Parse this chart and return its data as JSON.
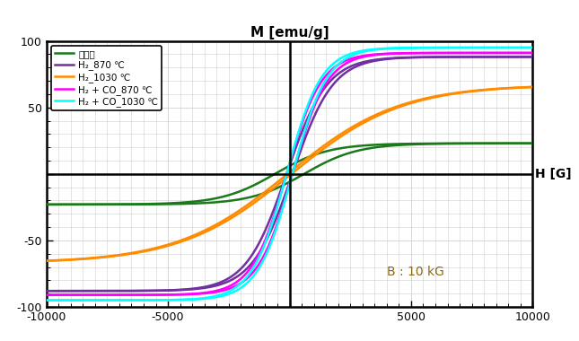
{
  "title": "M [emu/g]",
  "xlabel": "H [G]",
  "annotation": "B : 10 kG",
  "xlim": [
    -10000,
    10000
  ],
  "ylim": [
    -100,
    100
  ],
  "xticks": [
    -10000,
    -5000,
    0,
    5000,
    10000
  ],
  "yticks": [
    -100,
    -50,
    0,
    50,
    100
  ],
  "grid_color": "#d0d0d0",
  "background_color": "#ffffff",
  "curves": [
    {
      "label": "산화철",
      "color": "#1a7a1a",
      "Ms": 23,
      "Hc": 600,
      "k": 0.00045
    },
    {
      "label": "H₂_870 ℃",
      "color": "#7030a0",
      "Ms": 88,
      "Hc": 120,
      "k": 0.0006
    },
    {
      "label": "H₂_1030 ℃",
      "color": "#ff8c00",
      "Ms": 67,
      "Hc": 80,
      "k": 0.00022
    },
    {
      "label": "H₂ + CO_870 ℃",
      "color": "#ff00ff",
      "Ms": 91,
      "Hc": 120,
      "k": 0.0007
    },
    {
      "label": "H₂ + CO_1030 ℃",
      "color": "#00ffff",
      "Ms": 95,
      "Hc": 120,
      "k": 0.0007
    }
  ]
}
